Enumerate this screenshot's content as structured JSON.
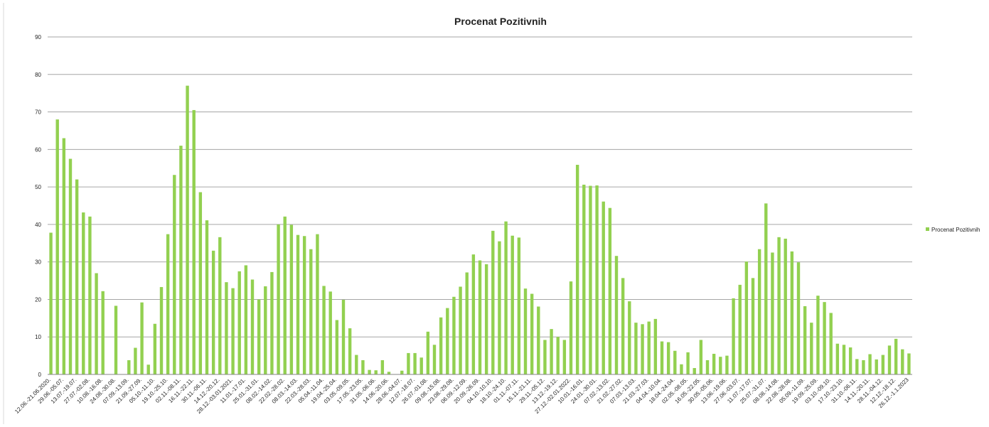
{
  "chart_data": {
    "type": "bar",
    "title": "Procenat Pozitivnih",
    "legend": {
      "placement": "right",
      "entries": [
        "Procenat Pozitivnih"
      ]
    },
    "xlabel": "",
    "ylabel": "",
    "ylim": [
      0,
      90
    ],
    "yticks": [
      "0",
      "10",
      "20",
      "30",
      "40",
      "50",
      "60",
      "70",
      "80",
      "90"
    ],
    "grid": true,
    "colors": {
      "bar": "#92D050",
      "grid": "#A6A6A6",
      "axis": "#868686"
    },
    "x_tick_labels": [
      "12.06.-21.06.2020.",
      "29.06.-05.07.",
      "13.07.-19.07.",
      "27.07.-02.08.",
      "10.08.-16.08.",
      "24.08.-30.08.",
      "07.09.-13.09.",
      "21.09.-27.09.",
      "05.10.-11.10.",
      "19.10.-25.10.",
      "02.11.-08.11.",
      "16.11.-22.11.",
      "30.11.-06.11.",
      "14.12.-20.12.",
      "28.12.-03.01.2021.",
      "11.01.-17.01.",
      "25.01.-31.01.",
      "08.02.-14.02.",
      "22.02.-28.02.",
      "08.03.-14.03.",
      "22.03.-28.03.",
      "05.04.-11.04.",
      "19.04.-25.04.",
      "03.05.-09.05.",
      "17.05.-23.05.",
      "31.05.-06.06.",
      "14.06.-20.06.",
      "28.06.-04.07.",
      "12.07.-18.07.",
      "26.07.-01.08.",
      "09.08.-15.08.",
      "23.08.-29.08.",
      "06.09.-12.09.",
      "20.09.-26.09.",
      "04.10.-10.10.",
      "18.10.-24.10.",
      "01.11.-07.11.",
      "15.11.-21.11.",
      "29.11.-05.12.",
      "13.12.-19.12.",
      "27.12.-02.01.2022.",
      "10.01.-16.01.",
      "24.01.-30.01.",
      "07.02.-13.02.",
      "21.02.-27.02.",
      "07.03.-13.03.",
      "21.03.-27.03.",
      "04.04.-10.04.",
      "18.04.-24.04.",
      "02.05.-08.05.",
      "16.05.-22.05.",
      "30.05.-05.06.",
      "13.06.-19.06.",
      "27.06.-03.07.",
      "11.07.-17.07.",
      "25.07.-31.07.",
      "08.08.-14.08.",
      "22.08.-28.08.",
      "05.09.-11.09.",
      "19.09.-25.09.",
      "03.10.-09.10.",
      "17.10.-23.10.",
      "31.10.-06.11.",
      "14.11.-20.11.",
      "28.11.-04.12.",
      "12.12.-18.12.",
      "26.12.-1.1.2023"
    ],
    "series": [
      {
        "name": "Procenat Pozitivnih",
        "values": [
          37.8,
          68,
          63,
          57.5,
          52,
          43.2,
          42.1,
          27,
          22.2,
          0,
          18.3,
          0,
          3.8,
          7.1,
          19.2,
          2.6,
          13.5,
          23.3,
          37.4,
          53.2,
          61,
          77,
          70.5,
          48.6,
          41.1,
          33,
          36.6,
          24.6,
          23,
          27.5,
          29.1,
          25.3,
          20,
          23.5,
          27.3,
          40,
          42.1,
          39.9,
          37.2,
          36.9,
          33.4,
          37.4,
          23.6,
          22.1,
          14.5,
          19.9,
          12.3,
          5.2,
          3.8,
          1.2,
          1.1,
          3.8,
          0.7,
          0,
          1,
          5.7,
          5.7,
          4.5,
          11.4,
          7.9,
          15.2,
          17.7,
          20.7,
          23.4,
          27.2,
          32,
          30.4,
          29.4,
          38.3,
          35.5,
          40.8,
          37,
          36.5,
          22.9,
          21.5,
          18.1,
          9.2,
          12.1,
          10,
          9.2,
          24.8,
          55.9,
          50.6,
          50.3,
          50.4,
          46.1,
          44.4,
          31.6,
          25.7,
          19.5,
          13.8,
          13.4,
          14.1,
          14.8,
          8.8,
          8.6,
          6.3,
          2.7,
          5.9,
          1.7,
          9.2,
          3.8,
          5.5,
          4.7,
          5,
          20.3,
          23.9,
          30.1,
          25.7,
          33.4,
          45.6,
          32.5,
          36.6,
          36.2,
          32.8,
          29.9,
          18.2,
          13.8,
          21,
          19.3,
          16.4,
          8.2,
          7.9,
          7.2,
          4.1,
          3.8,
          5.4,
          4,
          5.2,
          7.7,
          9.5,
          6.7,
          5.6
        ]
      }
    ]
  }
}
